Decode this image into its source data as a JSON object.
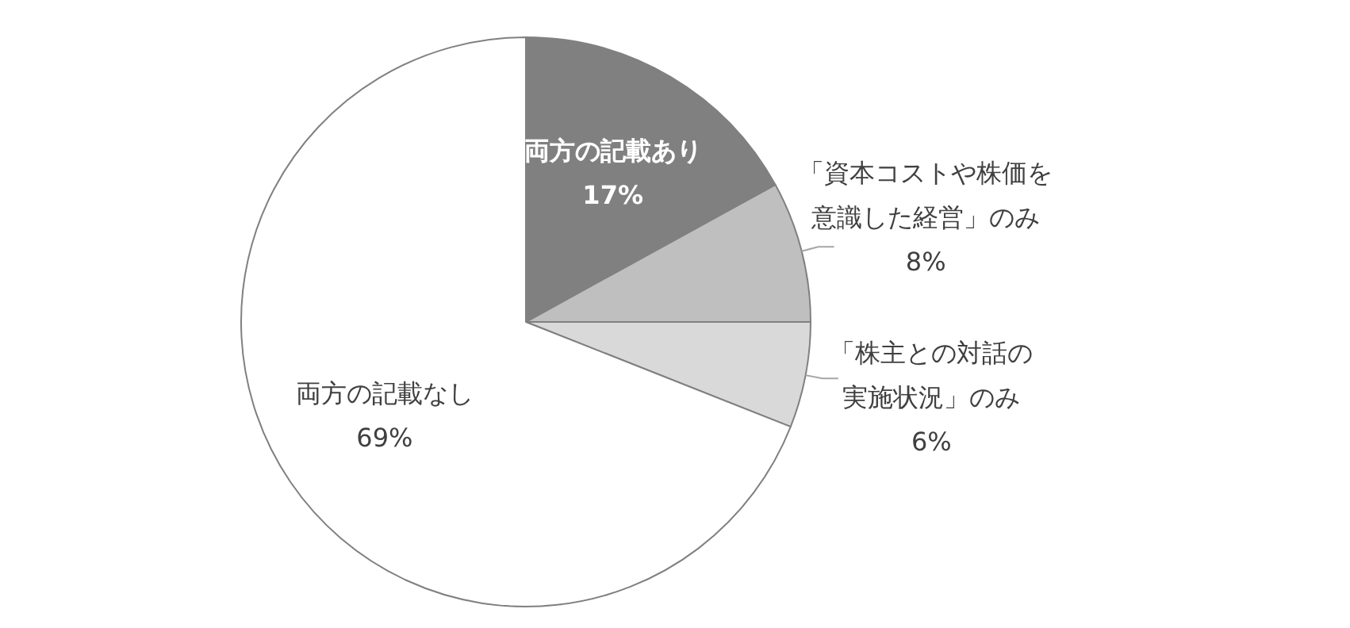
{
  "chart_data": {
    "type": "pie",
    "categories": [
      "両方の記載あり",
      "「資本コストや株価を意識した経営」のみ",
      "「株主との対話の実施状況」のみ",
      "両方の記載なし"
    ],
    "values": [
      17,
      8,
      6,
      69
    ],
    "value_labels": [
      "17%",
      "8%",
      "6%",
      "69%"
    ],
    "colors": [
      "#808080",
      "#bfbfbf",
      "#d9d9d9",
      "#ffffff"
    ],
    "legend": false
  }
}
